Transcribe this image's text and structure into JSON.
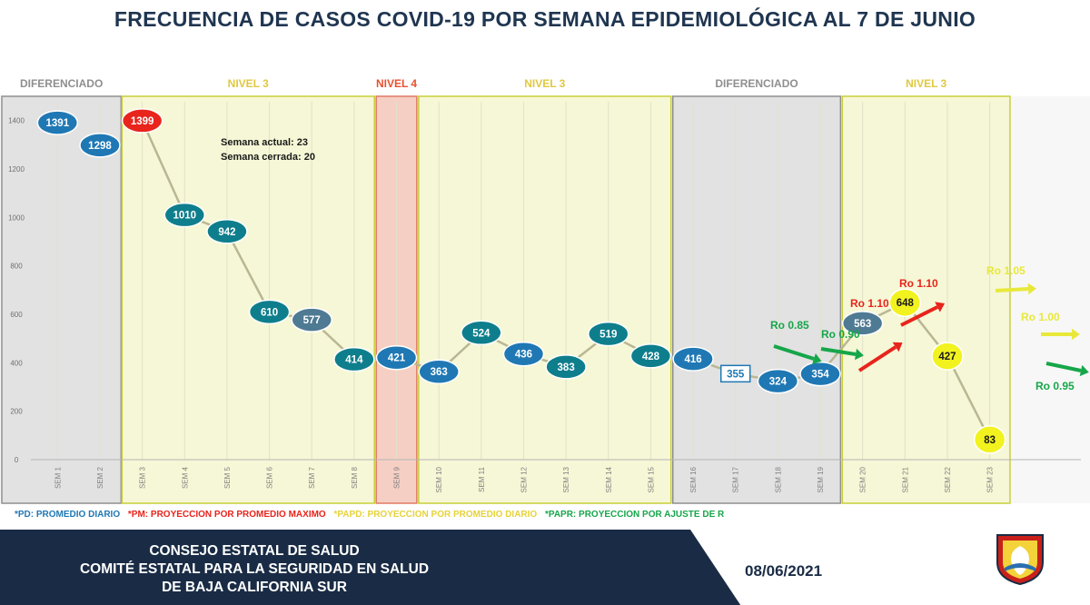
{
  "title": "FRECUENCIA DE CASOS COVID-19 POR SEMANA EPIDEMIOLÓGICA AL 7  DE JUNIO",
  "colors": {
    "blue_marker": "#1f78b4",
    "teal_marker": "#0e7e8c",
    "slate_marker": "#4f7a93",
    "red_marker": "#e8241c",
    "yellow_marker": "#f2f21f",
    "yellow_zone": "#f6f7d6",
    "red_zone": "#f6cfc4",
    "gray_zone": "#e2e2e2",
    "ro_red": "#e8241c",
    "ro_green": "#16a64a",
    "ro_yellow": "#e8e83a",
    "footer": "#1a2c45"
  },
  "chart_data": {
    "type": "line",
    "categories": [
      "SEM 1",
      "SEM 2",
      "SEM 3",
      "SEM 4",
      "SEM 5",
      "SEM 6",
      "SEM 7",
      "SEM 8",
      "SEM 9",
      "SEM 10",
      "SEM 11",
      "SEM 12",
      "SEM 13",
      "SEM 14",
      "SEM 15",
      "SEM 16",
      "SEM 17",
      "SEM 18",
      "SEM 19",
      "SEM 20",
      "SEM 21",
      "SEM 22",
      "SEM 23"
    ],
    "values": [
      1391,
      1298,
      1399,
      1010,
      942,
      610,
      577,
      414,
      421,
      363,
      524,
      436,
      383,
      519,
      428,
      416,
      355,
      324,
      354,
      563,
      648,
      427,
      83
    ],
    "marker_types": [
      "blue",
      "blue",
      "red",
      "teal",
      "teal",
      "teal",
      "slate",
      "teal",
      "blue",
      "blue",
      "teal",
      "blue",
      "teal",
      "teal",
      "teal",
      "blue",
      "box",
      "blue",
      "blue",
      "slate",
      "yellow",
      "yellow",
      "yellow"
    ],
    "y_ticks": [
      0,
      200,
      400,
      600,
      800,
      1000,
      1200,
      1400
    ],
    "ylim": [
      0,
      1500
    ],
    "zones": [
      {
        "label": "DIFERENCIADO",
        "start": 1,
        "end": 2,
        "kind": "gray"
      },
      {
        "label": "NIVEL 3",
        "start": 3,
        "end": 8,
        "kind": "yellow"
      },
      {
        "label": "NIVEL 4",
        "start": 9,
        "end": 9,
        "kind": "red"
      },
      {
        "label": "NIVEL 3",
        "start": 10,
        "end": 15,
        "kind": "yellow"
      },
      {
        "label": "DIFERENCIADO",
        "start": 16,
        "end": 19,
        "kind": "gray"
      },
      {
        "label": "NIVEL 3",
        "start": 20,
        "end": 23,
        "kind": "yellow"
      }
    ],
    "annotations": [
      {
        "text": "Semana actual: 23"
      },
      {
        "text": "Semana cerrada: 20"
      }
    ],
    "ro_labels": [
      {
        "text": "Ro 0.85",
        "color": "green"
      },
      {
        "text": "Ro 0.90",
        "color": "green"
      },
      {
        "text": "Ro 1.10",
        "color": "red"
      },
      {
        "text": "Ro 1.10",
        "color": "red"
      },
      {
        "text": "Ro 1.05",
        "color": "yellow"
      },
      {
        "text": "Ro 1.00",
        "color": "yellow"
      },
      {
        "text": "Ro 0.95",
        "color": "green"
      }
    ]
  },
  "legend": [
    {
      "text": "*PD: PROMEDIO DIARIO",
      "color": "#1f78b4"
    },
    {
      "text": "*PM: PROYECCION POR PROMEDIO MAXIMO",
      "color": "#e8241c"
    },
    {
      "text": "*PAPD: PROYECCION POR PROMEDIO DIARIO",
      "color": "#e6d23a"
    },
    {
      "text": "*PAPR: PROYECCION POR AJUSTE DE R",
      "color": "#16a64a"
    }
  ],
  "footer": {
    "line1": "CONSEJO ESTATAL DE SALUD",
    "line2": "COMITÉ ESTATAL PARA LA SEGURIDAD EN SALUD",
    "line3": "DE BAJA CALIFORNIA SUR",
    "date": "08/06/2021"
  }
}
